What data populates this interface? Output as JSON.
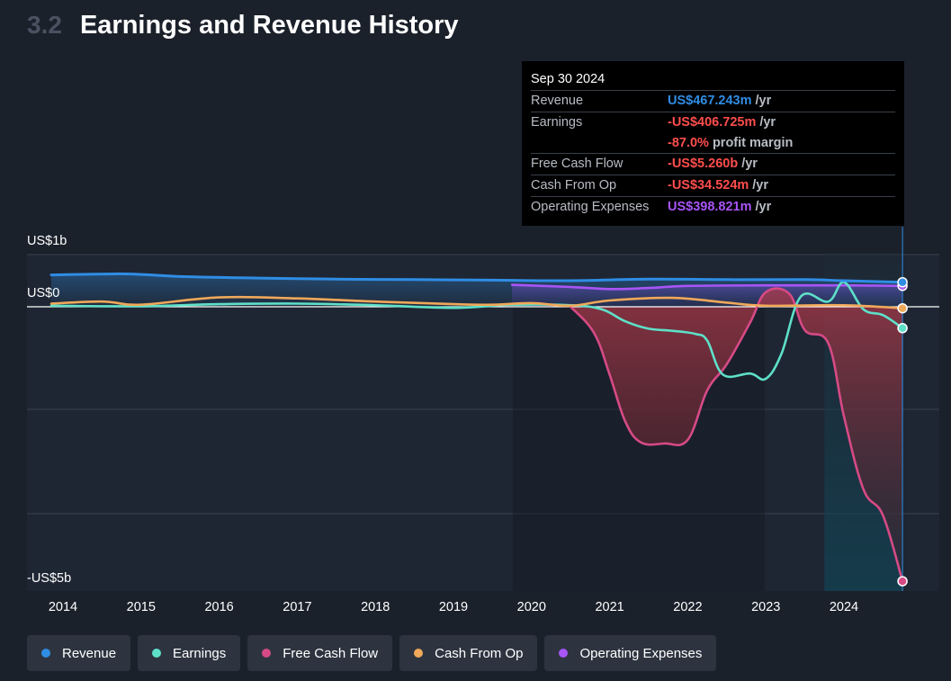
{
  "header": {
    "section_number": "3.2",
    "title": "Earnings and Revenue History"
  },
  "colors": {
    "revenue": "#2f8de4",
    "earnings": "#5ee0c8",
    "free_cash_flow": "#d64a86",
    "cash_from_op": "#f0a85a",
    "operating_expenses": "#a855f7",
    "negative": "#ff4d4d"
  },
  "tooltip": {
    "date": "Sep 30 2024",
    "rows": [
      {
        "label": "Revenue",
        "value": "US$467.243m",
        "unit": "/yr",
        "color": "blue"
      },
      {
        "label": "Earnings",
        "value": "-US$406.725m",
        "unit": "/yr",
        "color": "red"
      },
      {
        "label": "",
        "value": "-87.0%",
        "unit": "profit margin",
        "color": "red"
      },
      {
        "label": "Free Cash Flow",
        "value": "-US$5.260b",
        "unit": "/yr",
        "color": "red"
      },
      {
        "label": "Cash From Op",
        "value": "-US$34.524m",
        "unit": "/yr",
        "color": "red"
      },
      {
        "label": "Operating Expenses",
        "value": "US$398.821m",
        "unit": "/yr",
        "color": "purple"
      }
    ]
  },
  "legend": [
    {
      "label": "Revenue",
      "color": "#2f8de4"
    },
    {
      "label": "Earnings",
      "color": "#5ee0c8"
    },
    {
      "label": "Free Cash Flow",
      "color": "#d64a86"
    },
    {
      "label": "Cash From Op",
      "color": "#f0a85a"
    },
    {
      "label": "Operating Expenses",
      "color": "#a855f7"
    }
  ],
  "chart_data": {
    "type": "line",
    "title": "Earnings and Revenue History",
    "xlim": [
      2013.85,
      2024.95
    ],
    "ylim": [
      -5.3,
      1.0
    ],
    "y_tick_labels": [
      {
        "value": 1.0,
        "label": "US$1b"
      },
      {
        "value": 0,
        "label": "US$0"
      },
      {
        "value": -5.3,
        "label": "-US$5b"
      }
    ],
    "gridlines": [
      1.0,
      0,
      -2.0,
      -4.0
    ],
    "x_tick_labels": [
      "2014",
      "2015",
      "2016",
      "2017",
      "2018",
      "2019",
      "2020",
      "2021",
      "2022",
      "2023",
      "2024"
    ],
    "x_ticks": [
      2014,
      2015,
      2016,
      2017,
      2018,
      2019,
      2020,
      2021,
      2022,
      2023,
      2024
    ],
    "highlight_range": [
      2023.75,
      2024.75
    ],
    "cursor_x": 2024.75,
    "series": [
      {
        "name": "Revenue",
        "color": "#2f8de4",
        "x": [
          2013.85,
          2014.8,
          2015.5,
          2016.5,
          2017.5,
          2018.5,
          2019.5,
          2020.5,
          2021.5,
          2022.5,
          2023.5,
          2024.0,
          2024.75
        ],
        "y": [
          0.61,
          0.63,
          0.58,
          0.55,
          0.53,
          0.52,
          0.51,
          0.5,
          0.53,
          0.52,
          0.52,
          0.5,
          0.47
        ]
      },
      {
        "name": "Earnings",
        "color": "#5ee0c8",
        "x": [
          2013.85,
          2015.0,
          2016.0,
          2017.0,
          2018.0,
          2019.0,
          2019.75,
          2020.5,
          2020.9,
          2021.2,
          2021.5,
          2021.8,
          2022.1,
          2022.25,
          2022.45,
          2022.8,
          2023.0,
          2023.2,
          2023.45,
          2023.8,
          2024.0,
          2024.25,
          2024.5,
          2024.75
        ],
        "y": [
          0.02,
          0.01,
          0.05,
          0.06,
          0.03,
          -0.02,
          0.04,
          0.03,
          -0.05,
          -0.28,
          -0.42,
          -0.46,
          -0.52,
          -0.65,
          -1.3,
          -1.28,
          -1.38,
          -0.9,
          0.2,
          0.1,
          0.47,
          -0.05,
          -0.16,
          -0.41
        ]
      },
      {
        "name": "Free Cash Flow",
        "color": "#d64a86",
        "x": [
          2020.5,
          2020.8,
          2021.0,
          2021.2,
          2021.4,
          2021.7,
          2022.0,
          2022.25,
          2022.5,
          2022.8,
          2023.0,
          2023.3,
          2023.5,
          2023.8,
          2024.0,
          2024.25,
          2024.5,
          2024.75
        ],
        "y": [
          0.0,
          -0.5,
          -1.3,
          -2.2,
          -2.6,
          -2.62,
          -2.55,
          -1.6,
          -1.1,
          -0.3,
          0.28,
          0.25,
          -0.45,
          -0.7,
          -2.1,
          -3.5,
          -4.0,
          -5.26
        ]
      },
      {
        "name": "Cash From Op",
        "color": "#f0a85a",
        "x": [
          2013.85,
          2014.5,
          2015.0,
          2016.0,
          2017.0,
          2018.0,
          2019.0,
          2019.5,
          2020.0,
          2020.5,
          2021.0,
          2021.8,
          2022.5,
          2023.0,
          2024.0,
          2024.75
        ],
        "y": [
          0.06,
          0.1,
          0.04,
          0.18,
          0.16,
          0.1,
          0.05,
          0.04,
          0.07,
          0.02,
          0.12,
          0.17,
          0.08,
          0.02,
          0.03,
          -0.03
        ]
      },
      {
        "name": "Operating Expenses",
        "color": "#a855f7",
        "x": [
          2019.75,
          2020.5,
          2021.0,
          2021.5,
          2022.0,
          2023.0,
          2024.0,
          2024.75
        ],
        "y": [
          0.42,
          0.38,
          0.34,
          0.36,
          0.4,
          0.41,
          0.41,
          0.4
        ]
      }
    ]
  }
}
